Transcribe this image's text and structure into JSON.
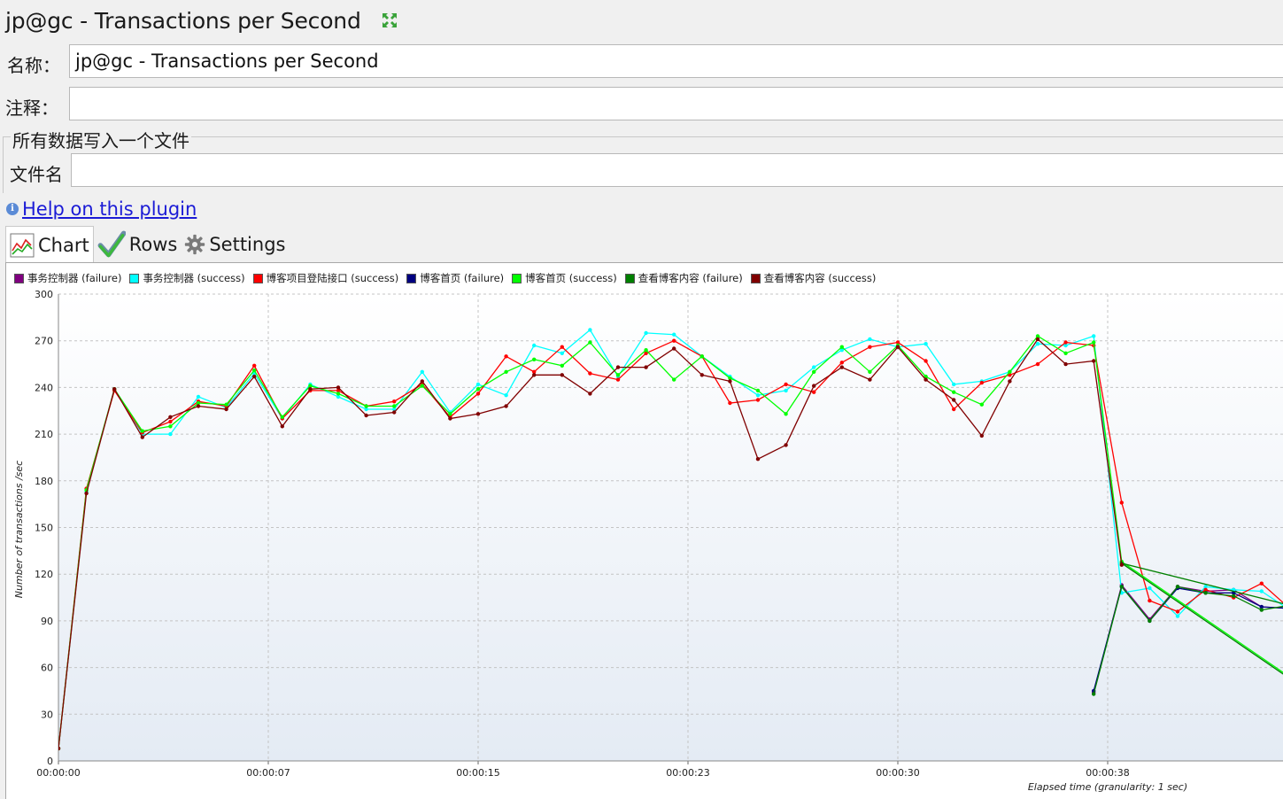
{
  "window": {
    "title": "jp@gc - Transactions per Second",
    "expand_icon": "expand-arrows-icon"
  },
  "form": {
    "name_label": "名称：",
    "name_value": "jp@gc - Transactions per Second",
    "comment_label": "注释：",
    "comment_value": "",
    "group_title": "所有数据写入一个文件",
    "file_label": "文件名",
    "file_value": ""
  },
  "help": {
    "icon": "info-icon",
    "link": "Help on this plugin"
  },
  "tabs": [
    {
      "label": "Chart",
      "icon": "line-chart-icon",
      "active": true
    },
    {
      "label": "Rows",
      "icon": "checkmark-icon",
      "active": false
    },
    {
      "label": "Settings",
      "icon": "gear-icon",
      "active": false
    }
  ],
  "colors": {
    "link": "#1b1bd6",
    "panel_bg": "#f0f0f0"
  },
  "chart_data": {
    "type": "line",
    "ylabel": "Number of transactions /sec",
    "xlabel": "Elapsed time (granularity: 1 sec)",
    "ylim": [
      0,
      300
    ],
    "yticks": [
      0,
      30,
      60,
      90,
      120,
      150,
      180,
      210,
      240,
      270,
      300
    ],
    "xlim_seconds": [
      0,
      44
    ],
    "xticks": [
      {
        "label": "00:00:00",
        "t": 0
      },
      {
        "label": "00:00:07",
        "t": 7.5
      },
      {
        "label": "00:00:15",
        "t": 15
      },
      {
        "label": "00:00:23",
        "t": 22.5
      },
      {
        "label": "00:00:30",
        "t": 30
      },
      {
        "label": "00:00:38",
        "t": 37.5
      }
    ],
    "grid": true,
    "legend_position": "top",
    "series": [
      {
        "name": "事务控制器 (failure)",
        "color": "#800080",
        "points": [
          [
            37,
            44
          ],
          [
            38,
            113
          ],
          [
            39,
            91
          ],
          [
            40,
            112
          ],
          [
            41,
            109
          ],
          [
            42,
            110
          ],
          [
            43,
            99
          ],
          [
            44,
            98
          ]
        ]
      },
      {
        "name": "事务控制器 (success)",
        "color": "#00ffff",
        "points": [
          [
            0,
            8
          ],
          [
            1,
            173
          ],
          [
            2,
            239
          ],
          [
            3,
            210
          ],
          [
            4,
            210
          ],
          [
            5,
            234
          ],
          [
            6,
            227
          ],
          [
            7,
            249
          ],
          [
            8,
            220
          ],
          [
            9,
            242
          ],
          [
            10,
            234
          ],
          [
            11,
            226
          ],
          [
            12,
            226
          ],
          [
            13,
            250
          ],
          [
            14,
            224
          ],
          [
            15,
            242
          ],
          [
            16,
            235
          ],
          [
            17,
            267
          ],
          [
            18,
            262
          ],
          [
            19,
            277
          ],
          [
            20,
            247
          ],
          [
            21,
            275
          ],
          [
            22,
            274
          ],
          [
            23,
            260
          ],
          [
            24,
            247
          ],
          [
            25,
            235
          ],
          [
            26,
            238
          ],
          [
            27,
            253
          ],
          [
            28,
            264
          ],
          [
            29,
            271
          ],
          [
            30,
            266
          ],
          [
            31,
            268
          ],
          [
            32,
            242
          ],
          [
            33,
            244
          ],
          [
            34,
            250
          ],
          [
            35,
            268
          ],
          [
            36,
            267
          ],
          [
            37,
            273
          ],
          [
            38,
            108
          ],
          [
            39,
            111
          ],
          [
            40,
            93
          ],
          [
            41,
            112
          ],
          [
            42,
            110
          ],
          [
            43,
            109
          ],
          [
            44,
            97
          ]
        ]
      },
      {
        "name": "博客项目登陆接口 (success)",
        "color": "#ff0000",
        "points": [
          [
            0,
            8
          ],
          [
            1,
            175
          ],
          [
            2,
            238
          ],
          [
            3,
            211
          ],
          [
            4,
            218
          ],
          [
            5,
            231
          ],
          [
            6,
            228
          ],
          [
            7,
            254
          ],
          [
            8,
            220
          ],
          [
            9,
            238
          ],
          [
            10,
            238
          ],
          [
            11,
            228
          ],
          [
            12,
            231
          ],
          [
            13,
            242
          ],
          [
            14,
            221
          ],
          [
            15,
            236
          ],
          [
            16,
            260
          ],
          [
            17,
            250
          ],
          [
            18,
            266
          ],
          [
            19,
            249
          ],
          [
            20,
            245
          ],
          [
            21,
            262
          ],
          [
            22,
            270
          ],
          [
            23,
            260
          ],
          [
            24,
            230
          ],
          [
            25,
            232
          ],
          [
            26,
            242
          ],
          [
            27,
            237
          ],
          [
            28,
            256
          ],
          [
            29,
            266
          ],
          [
            30,
            269
          ],
          [
            31,
            257
          ],
          [
            32,
            226
          ],
          [
            33,
            243
          ],
          [
            34,
            248
          ],
          [
            35,
            255
          ],
          [
            36,
            269
          ],
          [
            37,
            267
          ],
          [
            38,
            166
          ],
          [
            39,
            103
          ],
          [
            40,
            96
          ],
          [
            41,
            110
          ],
          [
            42,
            105
          ],
          [
            43,
            114
          ],
          [
            44,
            98
          ]
        ]
      },
      {
        "name": "博客首页 (failure)",
        "color": "#000080",
        "points": [
          [
            37,
            45
          ],
          [
            38,
            112
          ],
          [
            39,
            90
          ],
          [
            40,
            111
          ],
          [
            41,
            108
          ],
          [
            42,
            108
          ],
          [
            43,
            99
          ],
          [
            44,
            98
          ]
        ]
      },
      {
        "name": "博客首页 (success)",
        "color": "#00ff00",
        "points": [
          [
            0,
            8
          ],
          [
            1,
            174
          ],
          [
            2,
            239
          ],
          [
            3,
            212
          ],
          [
            4,
            215
          ],
          [
            5,
            230
          ],
          [
            6,
            229
          ],
          [
            7,
            251
          ],
          [
            8,
            221
          ],
          [
            9,
            241
          ],
          [
            10,
            236
          ],
          [
            11,
            228
          ],
          [
            12,
            228
          ],
          [
            13,
            241
          ],
          [
            14,
            223
          ],
          [
            15,
            239
          ],
          [
            16,
            250
          ],
          [
            17,
            258
          ],
          [
            18,
            254
          ],
          [
            19,
            269
          ],
          [
            20,
            248
          ],
          [
            21,
            264
          ],
          [
            22,
            245
          ],
          [
            23,
            260
          ],
          [
            24,
            246
          ],
          [
            25,
            238
          ],
          [
            26,
            223
          ],
          [
            27,
            250
          ],
          [
            28,
            266
          ],
          [
            29,
            250
          ],
          [
            30,
            267
          ],
          [
            31,
            247
          ],
          [
            32,
            237
          ],
          [
            33,
            229
          ],
          [
            34,
            250
          ],
          [
            35,
            273
          ],
          [
            36,
            262
          ],
          [
            37,
            269
          ],
          [
            38,
            128
          ],
          [
            44,
            54
          ]
        ]
      },
      {
        "name": "查看博客内容 (failure)",
        "color": "#008000",
        "points": [
          [
            37,
            43
          ],
          [
            38,
            112
          ],
          [
            39,
            90
          ],
          [
            40,
            112
          ],
          [
            41,
            108
          ],
          [
            42,
            106
          ],
          [
            43,
            97
          ],
          [
            44,
            100
          ],
          [
            38,
            127
          ],
          [
            44,
            53
          ]
        ]
      },
      {
        "name": "查看博客内容 (success)",
        "color": "#800000",
        "points": [
          [
            0,
            8
          ],
          [
            1,
            172
          ],
          [
            2,
            239
          ],
          [
            3,
            208
          ],
          [
            4,
            221
          ],
          [
            5,
            228
          ],
          [
            6,
            226
          ],
          [
            7,
            247
          ],
          [
            8,
            215
          ],
          [
            9,
            239
          ],
          [
            10,
            240
          ],
          [
            11,
            222
          ],
          [
            12,
            224
          ],
          [
            13,
            244
          ],
          [
            14,
            220
          ],
          [
            15,
            223
          ],
          [
            16,
            228
          ],
          [
            17,
            248
          ],
          [
            18,
            248
          ],
          [
            19,
            236
          ],
          [
            20,
            253
          ],
          [
            21,
            253
          ],
          [
            22,
            265
          ],
          [
            23,
            248
          ],
          [
            24,
            244
          ],
          [
            25,
            194
          ],
          [
            26,
            203
          ],
          [
            27,
            241
          ],
          [
            28,
            253
          ],
          [
            29,
            245
          ],
          [
            30,
            266
          ],
          [
            31,
            245
          ],
          [
            32,
            232
          ],
          [
            33,
            209
          ],
          [
            34,
            244
          ],
          [
            35,
            271
          ],
          [
            36,
            255
          ],
          [
            37,
            257
          ],
          [
            38,
            126
          ]
        ]
      }
    ]
  }
}
